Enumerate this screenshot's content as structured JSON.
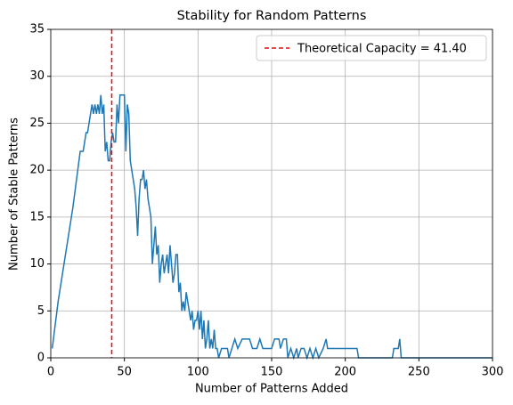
{
  "chart_data": {
    "type": "line",
    "title": "Stability for Random Patterns",
    "xlabel": "Number of Patterns Added",
    "ylabel": "Number of Stable Patterns",
    "x": [
      1,
      5,
      10,
      15,
      20,
      22,
      24,
      25,
      27,
      28,
      29,
      30,
      31,
      32,
      33,
      34,
      35,
      36,
      37,
      38,
      39,
      40,
      41,
      42,
      43,
      44,
      45,
      46,
      47,
      48,
      49,
      50,
      51,
      52,
      53,
      54,
      55,
      56,
      57,
      58,
      59,
      60,
      61,
      62,
      63,
      64,
      65,
      66,
      67,
      68,
      69,
      70,
      71,
      72,
      73,
      74,
      75,
      76,
      77,
      78,
      79,
      80,
      81,
      82,
      83,
      84,
      85,
      86,
      87,
      88,
      89,
      90,
      91,
      92,
      93,
      94,
      95,
      96,
      97,
      98,
      99,
      100,
      101,
      102,
      103,
      104,
      105,
      106,
      107,
      108,
      109,
      110,
      111,
      112,
      113,
      114,
      116,
      118,
      120,
      121,
      123,
      125,
      127,
      130,
      135,
      137,
      140,
      142,
      144,
      150,
      152,
      155,
      156,
      158,
      160,
      161,
      163,
      165,
      167,
      168,
      170,
      172,
      174,
      176,
      178,
      180,
      182,
      185,
      187,
      188,
      190,
      208,
      209,
      232,
      233,
      236,
      237,
      238,
      300
    ],
    "series": [
      {
        "name": null,
        "color": "#1f77b4",
        "values": [
          1,
          6,
          11,
          16,
          22,
          22,
          24,
          24,
          26,
          27,
          26,
          27,
          26,
          27,
          26,
          28,
          26,
          27,
          22,
          23,
          21,
          21,
          23,
          24,
          23,
          23,
          27,
          25,
          28,
          28,
          28,
          28,
          22,
          27,
          26,
          21,
          20,
          19,
          18,
          16,
          13,
          17,
          19,
          19,
          20,
          18,
          19,
          17,
          16,
          15,
          10,
          12,
          14,
          11,
          12,
          8,
          10,
          11,
          9,
          10,
          11,
          9,
          12,
          10,
          8,
          9,
          11,
          11,
          7,
          8,
          5,
          6,
          5,
          7,
          6,
          5,
          4,
          5,
          3,
          4,
          4,
          5,
          3,
          5,
          2,
          4,
          1,
          2,
          4,
          1,
          2,
          1,
          3,
          1,
          1,
          0,
          1,
          1,
          1,
          0,
          1,
          2,
          1,
          2,
          2,
          1,
          1,
          2,
          1,
          1,
          2,
          2,
          1,
          2,
          2,
          0,
          1,
          0,
          1,
          0,
          1,
          1,
          0,
          1,
          0,
          1,
          0,
          1,
          2,
          1,
          1,
          1,
          0,
          0,
          1,
          1,
          2,
          0,
          0
        ]
      }
    ],
    "vline": {
      "x": 41.4,
      "label": "Theoretical Capacity = 41.40",
      "color": "#ff0000"
    },
    "xlim": [
      0,
      300
    ],
    "xticks": [
      0,
      50,
      100,
      150,
      200,
      250,
      300
    ],
    "ylim": [
      0,
      35
    ],
    "yticks": [
      0,
      5,
      10,
      15,
      20,
      25,
      30,
      35
    ],
    "grid": true,
    "legend": "upper right"
  }
}
